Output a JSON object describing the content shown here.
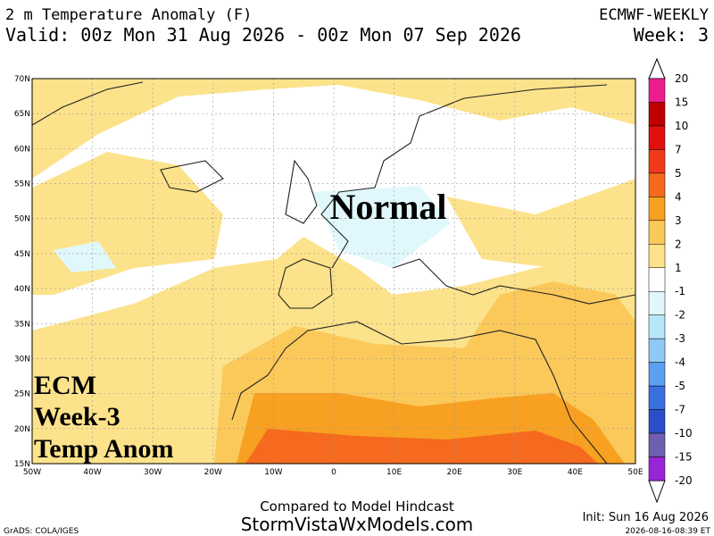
{
  "header": {
    "title": "2 m Temperature Anomaly (F)",
    "valid": "Valid: 00z Mon 31 Aug 2026 - 00z Mon 07 Sep 2026",
    "model": "ECMWF-WEEKLY",
    "week": "Week: 3"
  },
  "map": {
    "lat_labels": [
      "70N",
      "65N",
      "60N",
      "55N",
      "50N",
      "45N",
      "40N",
      "35N",
      "30N",
      "25N",
      "20N",
      "15N"
    ],
    "lon_labels": [
      "50W",
      "40W",
      "30W",
      "20W",
      "10W",
      "0",
      "10E",
      "20E",
      "30E",
      "40E",
      "50E"
    ],
    "center_note": "Normal",
    "corner_note": [
      "ECM",
      "Week-3",
      "Temp Anom"
    ]
  },
  "colorbar": {
    "labels": [
      "20",
      "15",
      "10",
      "7",
      "5",
      "4",
      "3",
      "2",
      "1",
      "-1",
      "-2",
      "-3",
      "-4",
      "-5",
      "-7",
      "-10",
      "-15",
      "-20"
    ],
    "colors": [
      "#ee1d8e",
      "#c00000",
      "#e01010",
      "#f03a1a",
      "#f56a1e",
      "#f7a021",
      "#fbc85a",
      "#fce28a",
      "#ffffff",
      "#e0f8fb",
      "#b6e6f9",
      "#90c9f3",
      "#5d9ff0",
      "#3a6fe0",
      "#2a4fc8",
      "#6f5fb0",
      "#9a24d8"
    ]
  },
  "footer": {
    "compared": "Compared to Model Hindcast",
    "site": "StormVistaWxModels.com",
    "init": "Init: Sun 16 Aug 2026",
    "grads": "GrADS: COLA/IGES",
    "timestamp": "2026-08-16-08:39 ET"
  }
}
